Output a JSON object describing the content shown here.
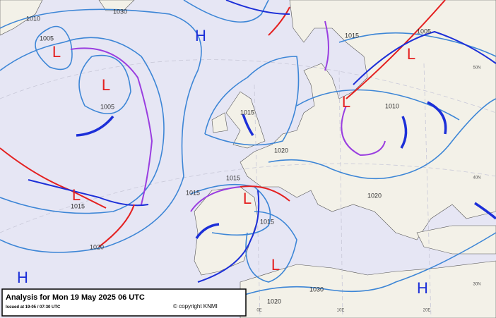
{
  "footer": {
    "title": "Analysis for Mon 19 May 2025 06 UTC",
    "issued": "Issued at 19-05 / 07:30 UTC",
    "copyright": "© copyright KNMI"
  },
  "pressure_centers": [
    "H",
    "H",
    "H",
    "H",
    "L",
    "L",
    "L",
    "L",
    "L",
    "L",
    "L",
    "L"
  ],
  "isobar_labels": [
    "1010",
    "1030",
    "1005",
    "1005",
    "1015",
    "1020",
    "1015",
    "1015",
    "1020",
    "1015",
    "1015",
    "1020",
    "1030",
    "1010",
    "1005",
    "1015",
    "1020"
  ],
  "grid_labels": [
    "50N",
    "40N",
    "30N",
    "0E",
    "10E",
    "20E"
  ]
}
